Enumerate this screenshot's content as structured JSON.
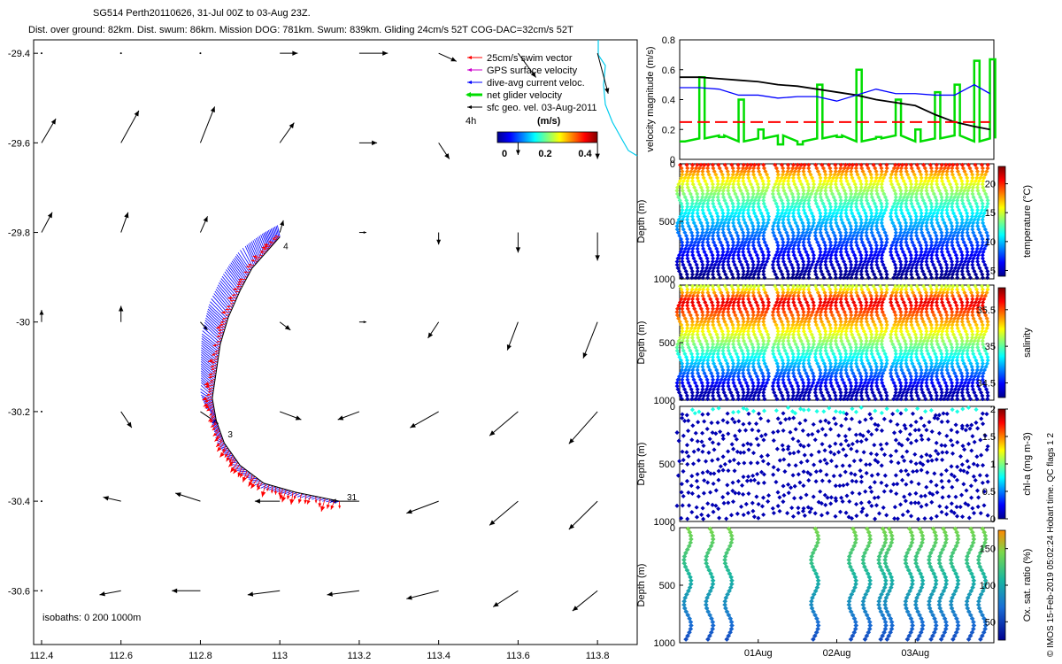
{
  "header": {
    "line1": "SG514 Perth20110626, 31-Jul 00Z to 03-Aug 23Z.",
    "line2": "Dist. over ground: 82km. Dist. swum: 86km. Mission DOG: 781km. Swum: 839km. Gliding 24cm/s 52T COG-DAC=32cm/s 52T"
  },
  "credit": "© IMOS 15-Feb-2019 05:02:24 Hobart time. QC flags 1 2",
  "colors": {
    "swim": "#ff0000",
    "gps": "#cc00cc",
    "dac": "#0000ff",
    "net": "#00dd00",
    "sfc": "#000000",
    "coast": "#00ccee"
  },
  "chart_data": [
    {
      "type": "scatter",
      "name": "map",
      "x_ticks": [
        "112.4",
        "112.6",
        "112.8",
        "113",
        "113.2",
        "113.4",
        "113.6",
        "113.8"
      ],
      "y_ticks": [
        "-29.4",
        "-29.6",
        "-29.8",
        "-30",
        "-30.2",
        "-30.4",
        "-30.6"
      ],
      "xlim": [
        112.38,
        113.9
      ],
      "ylim": [
        -30.72,
        -29.37
      ],
      "legend": {
        "items": [
          "25cm/s swim vector",
          "GPS surface velocity",
          "dive-avg current veloc.",
          "net glider velocity",
          "sfc geo. vel. 03-Aug-2011"
        ],
        "extra": "4h",
        "cbar_title": "(m/s)",
        "cbar_ticks": [
          "0",
          "0.2",
          "0.4"
        ],
        "placement": "top-right"
      },
      "isobaths": "isobaths: 0   200   1000m",
      "track_labels": [
        "4",
        "3",
        "31"
      ],
      "track": [
        [
          113.0,
          -29.81
        ],
        [
          112.97,
          -29.84
        ],
        [
          112.93,
          -29.88
        ],
        [
          112.9,
          -29.93
        ],
        [
          112.87,
          -29.99
        ],
        [
          112.85,
          -30.05
        ],
        [
          112.84,
          -30.11
        ],
        [
          112.83,
          -30.17
        ],
        [
          112.84,
          -30.22
        ],
        [
          112.86,
          -30.27
        ],
        [
          112.9,
          -30.32
        ],
        [
          112.96,
          -30.36
        ],
        [
          113.04,
          -30.38
        ],
        [
          113.15,
          -30.4
        ]
      ],
      "label_points": [
        [
          113.0,
          -29.83
        ],
        [
          112.86,
          -30.25
        ],
        [
          113.16,
          -30.39
        ]
      ],
      "sfc_vectors": [
        [
          112.4,
          -29.4,
          0.0,
          0.0
        ],
        [
          112.6,
          -29.4,
          0.0,
          0.0
        ],
        [
          112.8,
          -29.4,
          0.0,
          0.0
        ],
        [
          113.0,
          -29.4,
          0.05,
          0.0
        ],
        [
          113.2,
          -29.4,
          0.08,
          0.0
        ],
        [
          113.4,
          -29.4,
          0.05,
          -0.02
        ],
        [
          113.6,
          -29.4,
          0.05,
          -0.06
        ],
        [
          113.8,
          -29.4,
          0.03,
          -0.1
        ],
        [
          112.4,
          -29.6,
          0.04,
          0.06
        ],
        [
          112.6,
          -29.6,
          0.05,
          0.08
        ],
        [
          112.8,
          -29.6,
          0.04,
          0.09
        ],
        [
          113.0,
          -29.6,
          0.04,
          0.05
        ],
        [
          113.2,
          -29.6,
          0.05,
          0.0
        ],
        [
          113.4,
          -29.6,
          0.03,
          -0.04
        ],
        [
          113.6,
          -29.6,
          0.0,
          -0.03
        ],
        [
          113.8,
          -29.6,
          0.0,
          -0.04
        ],
        [
          112.4,
          -29.8,
          0.03,
          0.05
        ],
        [
          112.6,
          -29.8,
          0.02,
          0.05
        ],
        [
          112.8,
          -29.8,
          0.02,
          0.04
        ],
        [
          113.0,
          -29.8,
          0.01,
          0.03
        ],
        [
          113.2,
          -29.8,
          0.02,
          0.0
        ],
        [
          113.4,
          -29.8,
          0.0,
          -0.03
        ],
        [
          113.6,
          -29.8,
          0.0,
          -0.05
        ],
        [
          113.8,
          -29.8,
          0.0,
          -0.07
        ],
        [
          112.4,
          -30.0,
          0.0,
          0.03
        ],
        [
          112.6,
          -30.0,
          0.0,
          0.04
        ],
        [
          112.8,
          -30.0,
          0.02,
          -0.02
        ],
        [
          113.0,
          -30.0,
          0.03,
          -0.02
        ],
        [
          113.2,
          -30.0,
          0.02,
          0.0
        ],
        [
          113.4,
          -30.0,
          -0.03,
          -0.04
        ],
        [
          113.6,
          -30.0,
          -0.03,
          -0.07
        ],
        [
          113.8,
          -30.0,
          -0.04,
          -0.09
        ],
        [
          112.4,
          -30.2,
          0.0,
          0.0
        ],
        [
          112.6,
          -30.2,
          0.03,
          -0.04
        ],
        [
          112.8,
          -30.2,
          0.05,
          -0.03
        ],
        [
          113.0,
          -30.2,
          0.06,
          -0.02
        ],
        [
          113.2,
          -30.2,
          -0.06,
          -0.02
        ],
        [
          113.4,
          -30.2,
          -0.08,
          -0.04
        ],
        [
          113.6,
          -30.2,
          -0.08,
          -0.06
        ],
        [
          113.8,
          -30.2,
          -0.08,
          -0.08
        ],
        [
          112.4,
          -30.4,
          0.0,
          0.0
        ],
        [
          112.6,
          -30.4,
          -0.05,
          0.01
        ],
        [
          112.8,
          -30.4,
          -0.07,
          0.02
        ],
        [
          113.0,
          -30.4,
          -0.07,
          0.0
        ],
        [
          113.2,
          -30.4,
          -0.08,
          0.0
        ],
        [
          113.4,
          -30.4,
          -0.09,
          -0.03
        ],
        [
          113.6,
          -30.4,
          -0.08,
          -0.06
        ],
        [
          113.8,
          -30.4,
          -0.08,
          -0.07
        ],
        [
          112.4,
          -30.6,
          0.0,
          0.0
        ],
        [
          112.6,
          -30.6,
          -0.06,
          -0.01
        ],
        [
          112.8,
          -30.6,
          -0.08,
          0.0
        ],
        [
          113.0,
          -30.6,
          -0.09,
          -0.01
        ],
        [
          113.2,
          -30.6,
          -0.09,
          -0.01
        ],
        [
          113.4,
          -30.6,
          -0.09,
          -0.02
        ],
        [
          113.6,
          -30.6,
          -0.07,
          -0.04
        ],
        [
          113.8,
          -30.6,
          -0.07,
          -0.05
        ]
      ]
    },
    {
      "type": "line",
      "name": "velocity",
      "ylabel": "velocity magnitude (m/s)",
      "ylim": [
        0,
        0.8
      ],
      "y_ticks": [
        "0",
        "0.2",
        "0.4",
        "0.6",
        "0.8"
      ],
      "x": [
        0,
        0.25,
        0.5,
        0.75,
        1.0,
        1.25,
        1.5,
        1.75,
        2.0,
        2.25,
        2.5,
        2.75,
        3.0,
        3.25,
        3.5,
        3.75,
        3.95
      ],
      "series": [
        {
          "values": [
            0.55,
            0.55,
            0.54,
            0.53,
            0.52,
            0.5,
            0.49,
            0.47,
            0.45,
            0.43,
            0.4,
            0.38,
            0.36,
            0.3,
            0.25,
            0.22,
            0.2
          ]
        },
        {
          "values": [
            0.48,
            0.48,
            0.47,
            0.43,
            0.43,
            0.41,
            0.42,
            0.42,
            0.39,
            0.43,
            0.47,
            0.44,
            0.44,
            0.43,
            0.43,
            0.5,
            0.44
          ]
        },
        {
          "values": [
            0.12,
            0.55,
            0.15,
            0.4,
            0.2,
            0.1,
            0.1,
            0.5,
            0.15,
            0.6,
            0.15,
            0.4,
            0.2,
            0.45,
            0.5,
            0.66,
            0.67
          ]
        },
        {
          "values": [
            0.25,
            0.25,
            0.25,
            0.25,
            0.25,
            0.25,
            0.25,
            0.25,
            0.25,
            0.25,
            0.25,
            0.25,
            0.25,
            0.25,
            0.25,
            0.25,
            0.25
          ]
        }
      ]
    },
    {
      "type": "heatmap",
      "name": "temperature",
      "ylabel": "Depth (m)",
      "cblabel": "temperature (°C)",
      "ylim": [
        1000,
        0
      ],
      "y_ticks": [
        "0",
        "500",
        "1000"
      ],
      "cb_ticks": [
        "5",
        "10",
        "15",
        "20"
      ],
      "cb_range": [
        4,
        23
      ],
      "segments": [
        [
          0.0,
          0.78
        ],
        [
          0.84,
          1.16
        ],
        [
          1.22,
          1.7
        ],
        [
          1.76,
          2.22
        ],
        [
          2.28,
          2.62
        ],
        [
          2.72,
          3.95
        ]
      ]
    },
    {
      "type": "heatmap",
      "name": "salinity",
      "ylabel": "Depth (m)",
      "cblabel": "salinity",
      "ylim": [
        1000,
        0
      ],
      "y_ticks": [
        "0",
        "500",
        "1000"
      ],
      "cb_ticks": [
        "34.5",
        "35",
        "35.5"
      ],
      "cb_range": [
        34.3,
        35.8
      ],
      "segments": [
        [
          0.0,
          0.78
        ],
        [
          0.84,
          1.16
        ],
        [
          1.22,
          1.7
        ],
        [
          1.76,
          2.22
        ],
        [
          2.28,
          2.62
        ],
        [
          2.72,
          3.95
        ]
      ]
    },
    {
      "type": "heatmap",
      "name": "chl-a",
      "ylabel": "Depth (m)",
      "cblabel": "chl-a (mg m-3)",
      "ylim": [
        1000,
        0
      ],
      "y_ticks": [
        "0",
        "500",
        "1000"
      ],
      "cb_ticks": [
        "0",
        "0.5",
        "1",
        "1.5",
        "2"
      ],
      "cb_range": [
        0,
        2
      ],
      "segments": [
        [
          0.0,
          0.78
        ],
        [
          0.84,
          1.16
        ],
        [
          1.22,
          1.7
        ],
        [
          1.76,
          2.22
        ],
        [
          2.28,
          2.62
        ],
        [
          2.72,
          3.95
        ]
      ]
    },
    {
      "type": "heatmap",
      "name": "oxygen",
      "ylabel": "Depth (m)",
      "cblabel": "Ox. sat. ratio (%)",
      "ylim": [
        1000,
        0
      ],
      "y_ticks": [
        "0",
        "500",
        "1000"
      ],
      "x_ticks": [
        "01Aug",
        "02Aug",
        "03Aug"
      ],
      "cb_ticks": [
        "50",
        "100",
        "150"
      ],
      "cb_range": [
        25,
        175
      ],
      "casts": [
        0.1,
        0.38,
        0.62,
        1.72,
        2.2,
        2.38,
        2.58,
        2.66,
        2.92,
        3.05,
        3.22,
        3.35,
        3.5,
        3.7,
        3.85
      ]
    }
  ]
}
